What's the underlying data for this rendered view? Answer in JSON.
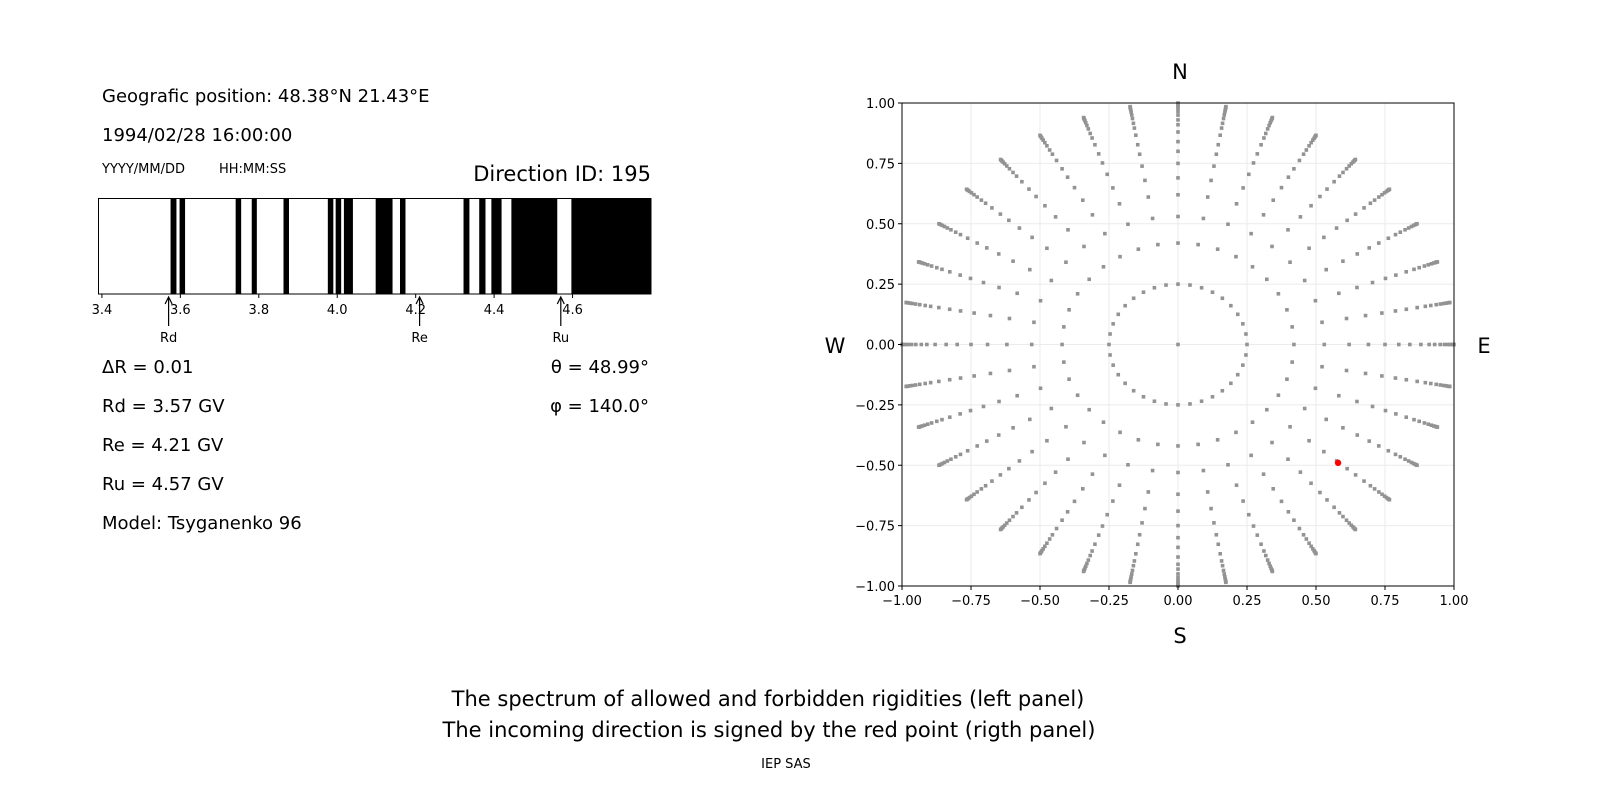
{
  "left_panel": {
    "geo_position": "Geografic position: 48.38°N 21.43°E",
    "datetime": "1994/02/28 16:00:00",
    "date_format": "YYYY/MM/DD",
    "time_format": "HH:MM:SS",
    "direction_id": "Direction ID: 195",
    "delta_r": "ΔR = 0.01",
    "rd": "Rd = 3.57 GV",
    "re": "Re = 4.21 GV",
    "ru": "Ru = 4.57 GV",
    "model": "Model: Tsyganenko 96",
    "theta": "θ = 48.99°",
    "phi": "φ = 140.0°"
  },
  "right_panel": {
    "north": "N",
    "south": "S",
    "west": "W",
    "east": "E"
  },
  "footer": {
    "caption_line1": "The spectrum of allowed and forbidden rigidities (left panel)",
    "caption_line2": "The incoming direction is signed by the red point (rigth panel)",
    "credit": "IEP SAS"
  },
  "chart_data": [
    {
      "type": "bar",
      "description_kind": "rigidity spectrum (black = forbidden, white = allowed)",
      "xlim": [
        3.39,
        4.8
      ],
      "x_ticks": [
        3.4,
        3.6,
        3.8,
        4.0,
        4.2,
        4.4,
        4.6
      ],
      "x_tick_labels": [
        "3.4",
        "3.6",
        "3.8",
        "4.0",
        "4.2",
        "4.4",
        "4.6"
      ],
      "forbidden_intervals": [
        [
          3.575,
          3.59
        ],
        [
          3.598,
          3.612
        ],
        [
          3.741,
          3.755
        ],
        [
          3.782,
          3.795
        ],
        [
          3.863,
          3.877
        ],
        [
          3.976,
          3.99
        ],
        [
          3.996,
          4.01
        ],
        [
          4.017,
          4.04
        ],
        [
          4.098,
          4.141
        ],
        [
          4.16,
          4.174
        ],
        [
          4.322,
          4.337
        ],
        [
          4.362,
          4.378
        ],
        [
          4.393,
          4.419
        ],
        [
          4.444,
          4.561
        ],
        [
          4.597,
          4.8
        ]
      ],
      "forbidden_color": "#000000",
      "allowed_color": "#ffffff",
      "markers": [
        {
          "label": "Rd",
          "value": 3.57
        },
        {
          "label": "Re",
          "value": 4.21
        },
        {
          "label": "Ru",
          "value": 4.57
        }
      ]
    },
    {
      "type": "scatter",
      "xlim": [
        -1.0,
        1.0
      ],
      "ylim": [
        -1.0,
        1.0
      ],
      "ticks": [
        -1.0,
        -0.75,
        -0.5,
        -0.25,
        0.0,
        0.25,
        0.5,
        0.75,
        1.0
      ],
      "tick_labels": [
        "−1.00",
        "−0.75",
        "−0.50",
        "−0.25",
        "0.00",
        "0.25",
        "0.50",
        "0.75",
        "1.00"
      ],
      "grid": true,
      "direction_grid": {
        "azimuth_step_deg": 10,
        "radii": [
          0.25,
          0.42,
          0.53,
          0.62,
          0.69,
          0.75,
          0.8,
          0.84,
          0.88,
          0.91,
          0.93,
          0.95,
          0.965,
          0.977,
          0.986,
          0.993,
          0.998,
          1.0
        ],
        "center_point": [
          0.0,
          0.0
        ],
        "color": "#939393"
      },
      "highlight_point": {
        "x": 0.58,
        "y": -0.49,
        "color": "#ff0000"
      }
    }
  ]
}
